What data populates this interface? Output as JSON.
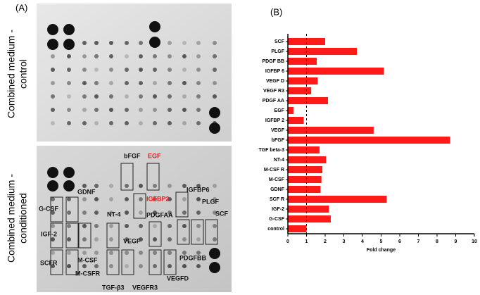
{
  "panels": {
    "a_label": "(A)",
    "b_label": "(B)"
  },
  "blot": {
    "row_labels": [
      [
        "Combined medium -",
        "control"
      ],
      [
        "Combined medium -",
        "conditioned"
      ]
    ],
    "spot_labels": [
      {
        "text": "bFGF",
        "color": "#111111"
      },
      {
        "text": "EGF",
        "color": "#e41a1c"
      },
      {
        "text": "GDNF",
        "color": "#111111"
      },
      {
        "text": "IGFBP6",
        "color": "#111111"
      },
      {
        "text": "IGFBP2",
        "color": "#e41a1c"
      },
      {
        "text": "PLGF",
        "color": "#111111"
      },
      {
        "text": "G-CSF",
        "color": "#111111"
      },
      {
        "text": "NT-4",
        "color": "#111111"
      },
      {
        "text": "PDGFAA",
        "color": "#111111"
      },
      {
        "text": "SCF",
        "color": "#111111"
      },
      {
        "text": "IGF-2",
        "color": "#111111"
      },
      {
        "text": "VEGF",
        "color": "#111111"
      },
      {
        "text": "M-CSF",
        "color": "#111111"
      },
      {
        "text": "SCFR",
        "color": "#111111"
      },
      {
        "text": "PDGFBB",
        "color": "#111111"
      },
      {
        "text": "M-CSFR",
        "color": "#111111"
      },
      {
        "text": "VEGFD",
        "color": "#111111"
      },
      {
        "text": "TGF-β3",
        "color": "#111111"
      },
      {
        "text": "VEGFR3",
        "color": "#111111"
      }
    ]
  },
  "chart_data": {
    "type": "barh",
    "xlabel": "Fold change",
    "color": "#ff1a1a",
    "categories": [
      "SCF",
      "PLGF",
      "PDGF BB",
      "IGFBP 6",
      "VEGF D",
      "VEGF R3",
      "PDGF AA",
      "EGF",
      "IGFBP 2",
      "VEGF",
      "bFGF",
      "TGF beta-3",
      "NT-4",
      "M-CSF R",
      "M-CSF",
      "GDNF",
      "SCF R",
      "IGF-2",
      "G-CSF",
      "control"
    ],
    "values": [
      2.0,
      3.7,
      1.55,
      5.15,
      1.6,
      1.25,
      2.15,
      0.3,
      0.85,
      4.6,
      8.7,
      1.7,
      2.05,
      1.85,
      1.8,
      1.75,
      5.3,
      2.2,
      2.3,
      1.0
    ],
    "xlim": [
      0,
      10
    ],
    "xticks": [
      0,
      1,
      2,
      3,
      4,
      5,
      6,
      7,
      8,
      9,
      10
    ],
    "reference_line": 1
  }
}
